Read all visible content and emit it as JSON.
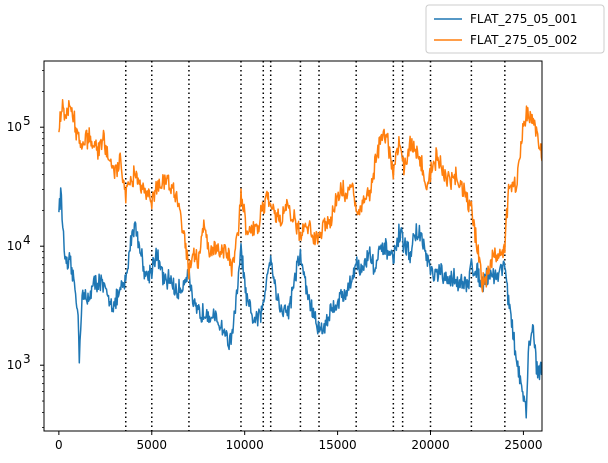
{
  "chart_data": {
    "type": "line",
    "title": "",
    "xlabel": "",
    "ylabel": "",
    "xlim": [
      -800,
      26000
    ],
    "ylim": [
      280,
      360000
    ],
    "yscale": "log",
    "grid": false,
    "legend_position": "top-right (outside plot)",
    "x_ticks": [
      0,
      5000,
      10000,
      15000,
      20000,
      25000
    ],
    "x_tick_labels": [
      "0",
      "5000",
      "10000",
      "15000",
      "20000",
      "25000"
    ],
    "y_ticks": [
      1000,
      10000,
      100000
    ],
    "y_tick_labels_base": [
      "10",
      "10",
      "10"
    ],
    "y_tick_labels_exp": [
      "3",
      "4",
      "5"
    ],
    "vlines": [
      3600,
      5000,
      7000,
      9800,
      11000,
      11400,
      13000,
      14000,
      16000,
      18000,
      18500,
      20000,
      22200,
      24000
    ],
    "vline_style": "dotted",
    "series": [
      {
        "name": "FLAT_275_05_001",
        "color": "#1f77b4",
        "points": [
          [
            0,
            21000
          ],
          [
            100,
            28000
          ],
          [
            250,
            12000
          ],
          [
            400,
            6500
          ],
          [
            600,
            7200
          ],
          [
            800,
            5200
          ],
          [
            1000,
            3200
          ],
          [
            1100,
            1250
          ],
          [
            1250,
            4000
          ],
          [
            1500,
            3400
          ],
          [
            1800,
            4600
          ],
          [
            2200,
            5200
          ],
          [
            2600,
            3800
          ],
          [
            3000,
            3200
          ],
          [
            3300,
            4200
          ],
          [
            3600,
            5000
          ],
          [
            3900,
            12000
          ],
          [
            4100,
            15500
          ],
          [
            4400,
            9000
          ],
          [
            4700,
            5500
          ],
          [
            5000,
            6500
          ],
          [
            5200,
            8500
          ],
          [
            5500,
            6500
          ],
          [
            5700,
            4800
          ],
          [
            6000,
            5500
          ],
          [
            6300,
            4000
          ],
          [
            6600,
            4500
          ],
          [
            7000,
            6500
          ],
          [
            7200,
            3100
          ],
          [
            7600,
            2700
          ],
          [
            8000,
            2900
          ],
          [
            8400,
            2400
          ],
          [
            8800,
            2100
          ],
          [
            9200,
            1500
          ],
          [
            9500,
            2800
          ],
          [
            9800,
            9500
          ],
          [
            10100,
            3500
          ],
          [
            10400,
            2500
          ],
          [
            10700,
            2400
          ],
          [
            11000,
            3000
          ],
          [
            11200,
            6000
          ],
          [
            11400,
            8500
          ],
          [
            11700,
            4000
          ],
          [
            12000,
            2800
          ],
          [
            12400,
            3000
          ],
          [
            12700,
            5500
          ],
          [
            13000,
            8500
          ],
          [
            13300,
            4500
          ],
          [
            13600,
            3000
          ],
          [
            13900,
            2100
          ],
          [
            14200,
            2000
          ],
          [
            14600,
            2800
          ],
          [
            15000,
            3500
          ],
          [
            15400,
            4000
          ],
          [
            15700,
            4800
          ],
          [
            16000,
            7500
          ],
          [
            16300,
            6000
          ],
          [
            16700,
            9000
          ],
          [
            17000,
            6500
          ],
          [
            17300,
            9000
          ],
          [
            17700,
            9500
          ],
          [
            18000,
            7500
          ],
          [
            18300,
            12500
          ],
          [
            18600,
            10500
          ],
          [
            18900,
            8500
          ],
          [
            19200,
            13000
          ],
          [
            19500,
            12000
          ],
          [
            19800,
            8000
          ],
          [
            20100,
            5500
          ],
          [
            20500,
            6000
          ],
          [
            20900,
            5000
          ],
          [
            21300,
            5500
          ],
          [
            21700,
            4800
          ],
          [
            22000,
            4600
          ],
          [
            22200,
            7000
          ],
          [
            22500,
            6000
          ],
          [
            22800,
            5000
          ],
          [
            23200,
            6000
          ],
          [
            23600,
            5500
          ],
          [
            24000,
            7500
          ],
          [
            24200,
            3500
          ],
          [
            24400,
            2000
          ],
          [
            24600,
            1200
          ],
          [
            24800,
            800
          ],
          [
            25000,
            500
          ],
          [
            25150,
            400
          ],
          [
            25300,
            1500
          ],
          [
            25500,
            2200
          ],
          [
            25700,
            1000
          ],
          [
            26000,
            850
          ]
        ]
      },
      {
        "name": "FLAT_275_05_002",
        "color": "#ff7f0e",
        "points": [
          [
            0,
            110000
          ],
          [
            200,
            145000
          ],
          [
            400,
            125000
          ],
          [
            600,
            148000
          ],
          [
            800,
            120000
          ],
          [
            1000,
            85000
          ],
          [
            1200,
            68000
          ],
          [
            1500,
            80000
          ],
          [
            1800,
            82000
          ],
          [
            2100,
            65000
          ],
          [
            2400,
            78000
          ],
          [
            2700,
            55000
          ],
          [
            3000,
            40000
          ],
          [
            3300,
            52000
          ],
          [
            3600,
            28000
          ],
          [
            3800,
            35000
          ],
          [
            4100,
            40000
          ],
          [
            4400,
            33000
          ],
          [
            4700,
            30000
          ],
          [
            5000,
            25000
          ],
          [
            5300,
            32000
          ],
          [
            5600,
            33000
          ],
          [
            5900,
            35000
          ],
          [
            6200,
            29000
          ],
          [
            6500,
            20000
          ],
          [
            6800,
            12000
          ],
          [
            7000,
            6000
          ],
          [
            7200,
            9000
          ],
          [
            7500,
            7500
          ],
          [
            7800,
            15000
          ],
          [
            8100,
            8500
          ],
          [
            8400,
            10000
          ],
          [
            8700,
            9000
          ],
          [
            9000,
            9500
          ],
          [
            9300,
            7000
          ],
          [
            9600,
            12000
          ],
          [
            9800,
            25000
          ],
          [
            10100,
            14000
          ],
          [
            10400,
            13000
          ],
          [
            10700,
            14500
          ],
          [
            11000,
            21000
          ],
          [
            11200,
            25000
          ],
          [
            11400,
            23000
          ],
          [
            11700,
            19000
          ],
          [
            12000,
            16000
          ],
          [
            12300,
            22000
          ],
          [
            12700,
            16000
          ],
          [
            13000,
            12000
          ],
          [
            13300,
            15000
          ],
          [
            13600,
            13000
          ],
          [
            14000,
            12000
          ],
          [
            14300,
            16000
          ],
          [
            14600,
            15500
          ],
          [
            14900,
            24000
          ],
          [
            15200,
            30000
          ],
          [
            15500,
            27000
          ],
          [
            15800,
            34000
          ],
          [
            16000,
            20000
          ],
          [
            16400,
            22000
          ],
          [
            16800,
            30000
          ],
          [
            17100,
            55000
          ],
          [
            17400,
            90000
          ],
          [
            17700,
            75000
          ],
          [
            18000,
            40000
          ],
          [
            18300,
            80000
          ],
          [
            18600,
            45000
          ],
          [
            18900,
            75000
          ],
          [
            19200,
            60000
          ],
          [
            19500,
            48000
          ],
          [
            19800,
            35000
          ],
          [
            20000,
            40000
          ],
          [
            20300,
            55000
          ],
          [
            20600,
            45000
          ],
          [
            21000,
            35000
          ],
          [
            21400,
            38000
          ],
          [
            21800,
            28000
          ],
          [
            22200,
            20000
          ],
          [
            22500,
            10000
          ],
          [
            22800,
            5000
          ],
          [
            23100,
            6000
          ],
          [
            23400,
            8000
          ],
          [
            23700,
            8500
          ],
          [
            24000,
            10000
          ],
          [
            24200,
            30000
          ],
          [
            24400,
            35000
          ],
          [
            24600,
            30000
          ],
          [
            24800,
            55000
          ],
          [
            25000,
            115000
          ],
          [
            25200,
            130000
          ],
          [
            25400,
            125000
          ],
          [
            25600,
            105000
          ],
          [
            25800,
            80000
          ],
          [
            26000,
            52000
          ]
        ]
      }
    ]
  }
}
